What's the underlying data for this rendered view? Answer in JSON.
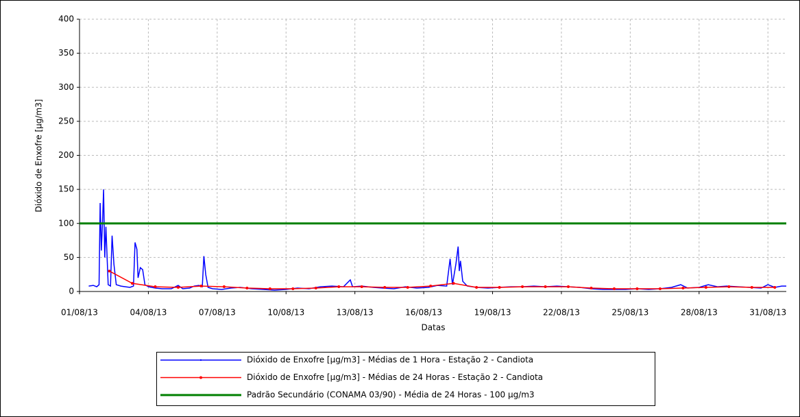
{
  "chart_data": {
    "type": "line",
    "ylabel": "Dióxido de Enxofre [µg/m3]",
    "xlabel": "Datas",
    "xlim": [
      0,
      30.8
    ],
    "ylim": [
      0,
      400
    ],
    "yticks": [
      0,
      50,
      100,
      150,
      200,
      250,
      300,
      350,
      400
    ],
    "xticks": [
      {
        "value": 0,
        "label": "01/08/13"
      },
      {
        "value": 3,
        "label": "04/08/13"
      },
      {
        "value": 6,
        "label": "07/08/13"
      },
      {
        "value": 9,
        "label": "10/08/13"
      },
      {
        "value": 12,
        "label": "13/08/13"
      },
      {
        "value": 15,
        "label": "16/08/13"
      },
      {
        "value": 18,
        "label": "19/08/13"
      },
      {
        "value": 21,
        "label": "22/08/13"
      },
      {
        "value": 24,
        "label": "25/08/13"
      },
      {
        "value": 27,
        "label": "28/08/13"
      },
      {
        "value": 30,
        "label": "31/08/13"
      }
    ],
    "grid": true,
    "legend": "bottom",
    "series": [
      {
        "name": "Dióxido de Enxofre [µg/m3] - Médias de 1 Hora - Estação 2 - Candiota",
        "color": "#0000ff",
        "width": 1.5,
        "x": [
          0.4,
          0.6,
          0.75,
          0.85,
          0.9,
          0.95,
          1.0,
          1.05,
          1.1,
          1.15,
          1.25,
          1.35,
          1.42,
          1.5,
          1.6,
          1.8,
          2.0,
          2.2,
          2.35,
          2.42,
          2.5,
          2.55,
          2.65,
          2.75,
          2.85,
          3.0,
          3.3,
          3.6,
          4.0,
          4.3,
          4.5,
          4.8,
          5.0,
          5.2,
          5.35,
          5.42,
          5.5,
          5.6,
          5.8,
          6.2,
          6.6,
          7.0,
          7.5,
          8.0,
          8.5,
          9.0,
          9.5,
          10.0,
          10.5,
          11.0,
          11.5,
          11.8,
          11.9,
          12.3,
          12.8,
          13.2,
          13.7,
          14.2,
          14.7,
          15.2,
          15.6,
          16.0,
          16.15,
          16.25,
          16.4,
          16.5,
          16.55,
          16.6,
          16.7,
          16.9,
          17.3,
          17.8,
          18.3,
          18.8,
          19.3,
          19.8,
          20.3,
          20.8,
          21.3,
          21.8,
          22.3,
          22.8,
          23.3,
          23.8,
          24.3,
          24.8,
          25.3,
          25.8,
          26.2,
          26.5,
          27.0,
          27.4,
          27.8,
          28.2,
          28.7,
          29.2,
          29.7,
          30.0,
          30.3,
          30.6,
          30.8
        ],
        "values": [
          8,
          9,
          7,
          10,
          130,
          60,
          100,
          150,
          50,
          95,
          10,
          8,
          82,
          40,
          10,
          8,
          7,
          6,
          8,
          72,
          62,
          20,
          35,
          32,
          10,
          7,
          5,
          4,
          4,
          9,
          4,
          5,
          8,
          9,
          7,
          52,
          25,
          6,
          4,
          3,
          5,
          6,
          4,
          3,
          2,
          3,
          5,
          4,
          7,
          8,
          7,
          17,
          7,
          8,
          6,
          5,
          4,
          7,
          5,
          6,
          9,
          8,
          48,
          10,
          40,
          66,
          30,
          45,
          15,
          8,
          6,
          5,
          6,
          7,
          7,
          8,
          7,
          8,
          7,
          6,
          4,
          3,
          3,
          3,
          4,
          3,
          4,
          6,
          10,
          5,
          6,
          10,
          7,
          8,
          7,
          6,
          5,
          10,
          6,
          8,
          8
        ]
      },
      {
        "name": "Dióxido de Enxofre [µg/m3] - Médias de 24 Horas - Estação 2 - Candiota",
        "color": "#ff0000",
        "width": 1.5,
        "markers": true,
        "x": [
          1.3,
          2.3,
          3.3,
          4.3,
          5.3,
          6.3,
          7.3,
          8.3,
          9.3,
          10.3,
          11.3,
          12.3,
          13.3,
          14.3,
          15.3,
          16.3,
          17.3,
          18.3,
          19.3,
          20.3,
          21.3,
          22.3,
          23.3,
          24.3,
          25.3,
          26.3,
          27.3,
          28.3,
          29.3,
          30.3
        ],
        "values": [
          30,
          12,
          7,
          6,
          8,
          7,
          5,
          4,
          4,
          5,
          7,
          7,
          6,
          6,
          8,
          12,
          6,
          6,
          7,
          7,
          7,
          5,
          4,
          4,
          4,
          5,
          6,
          7,
          6,
          6
        ]
      },
      {
        "name": "Padrão Secundário (CONAMA 03/90) - Média de 24 Horas - 100 µg/m3",
        "color": "#008000",
        "width": 3,
        "x": [
          0,
          30.8
        ],
        "values": [
          100,
          100
        ]
      }
    ]
  }
}
